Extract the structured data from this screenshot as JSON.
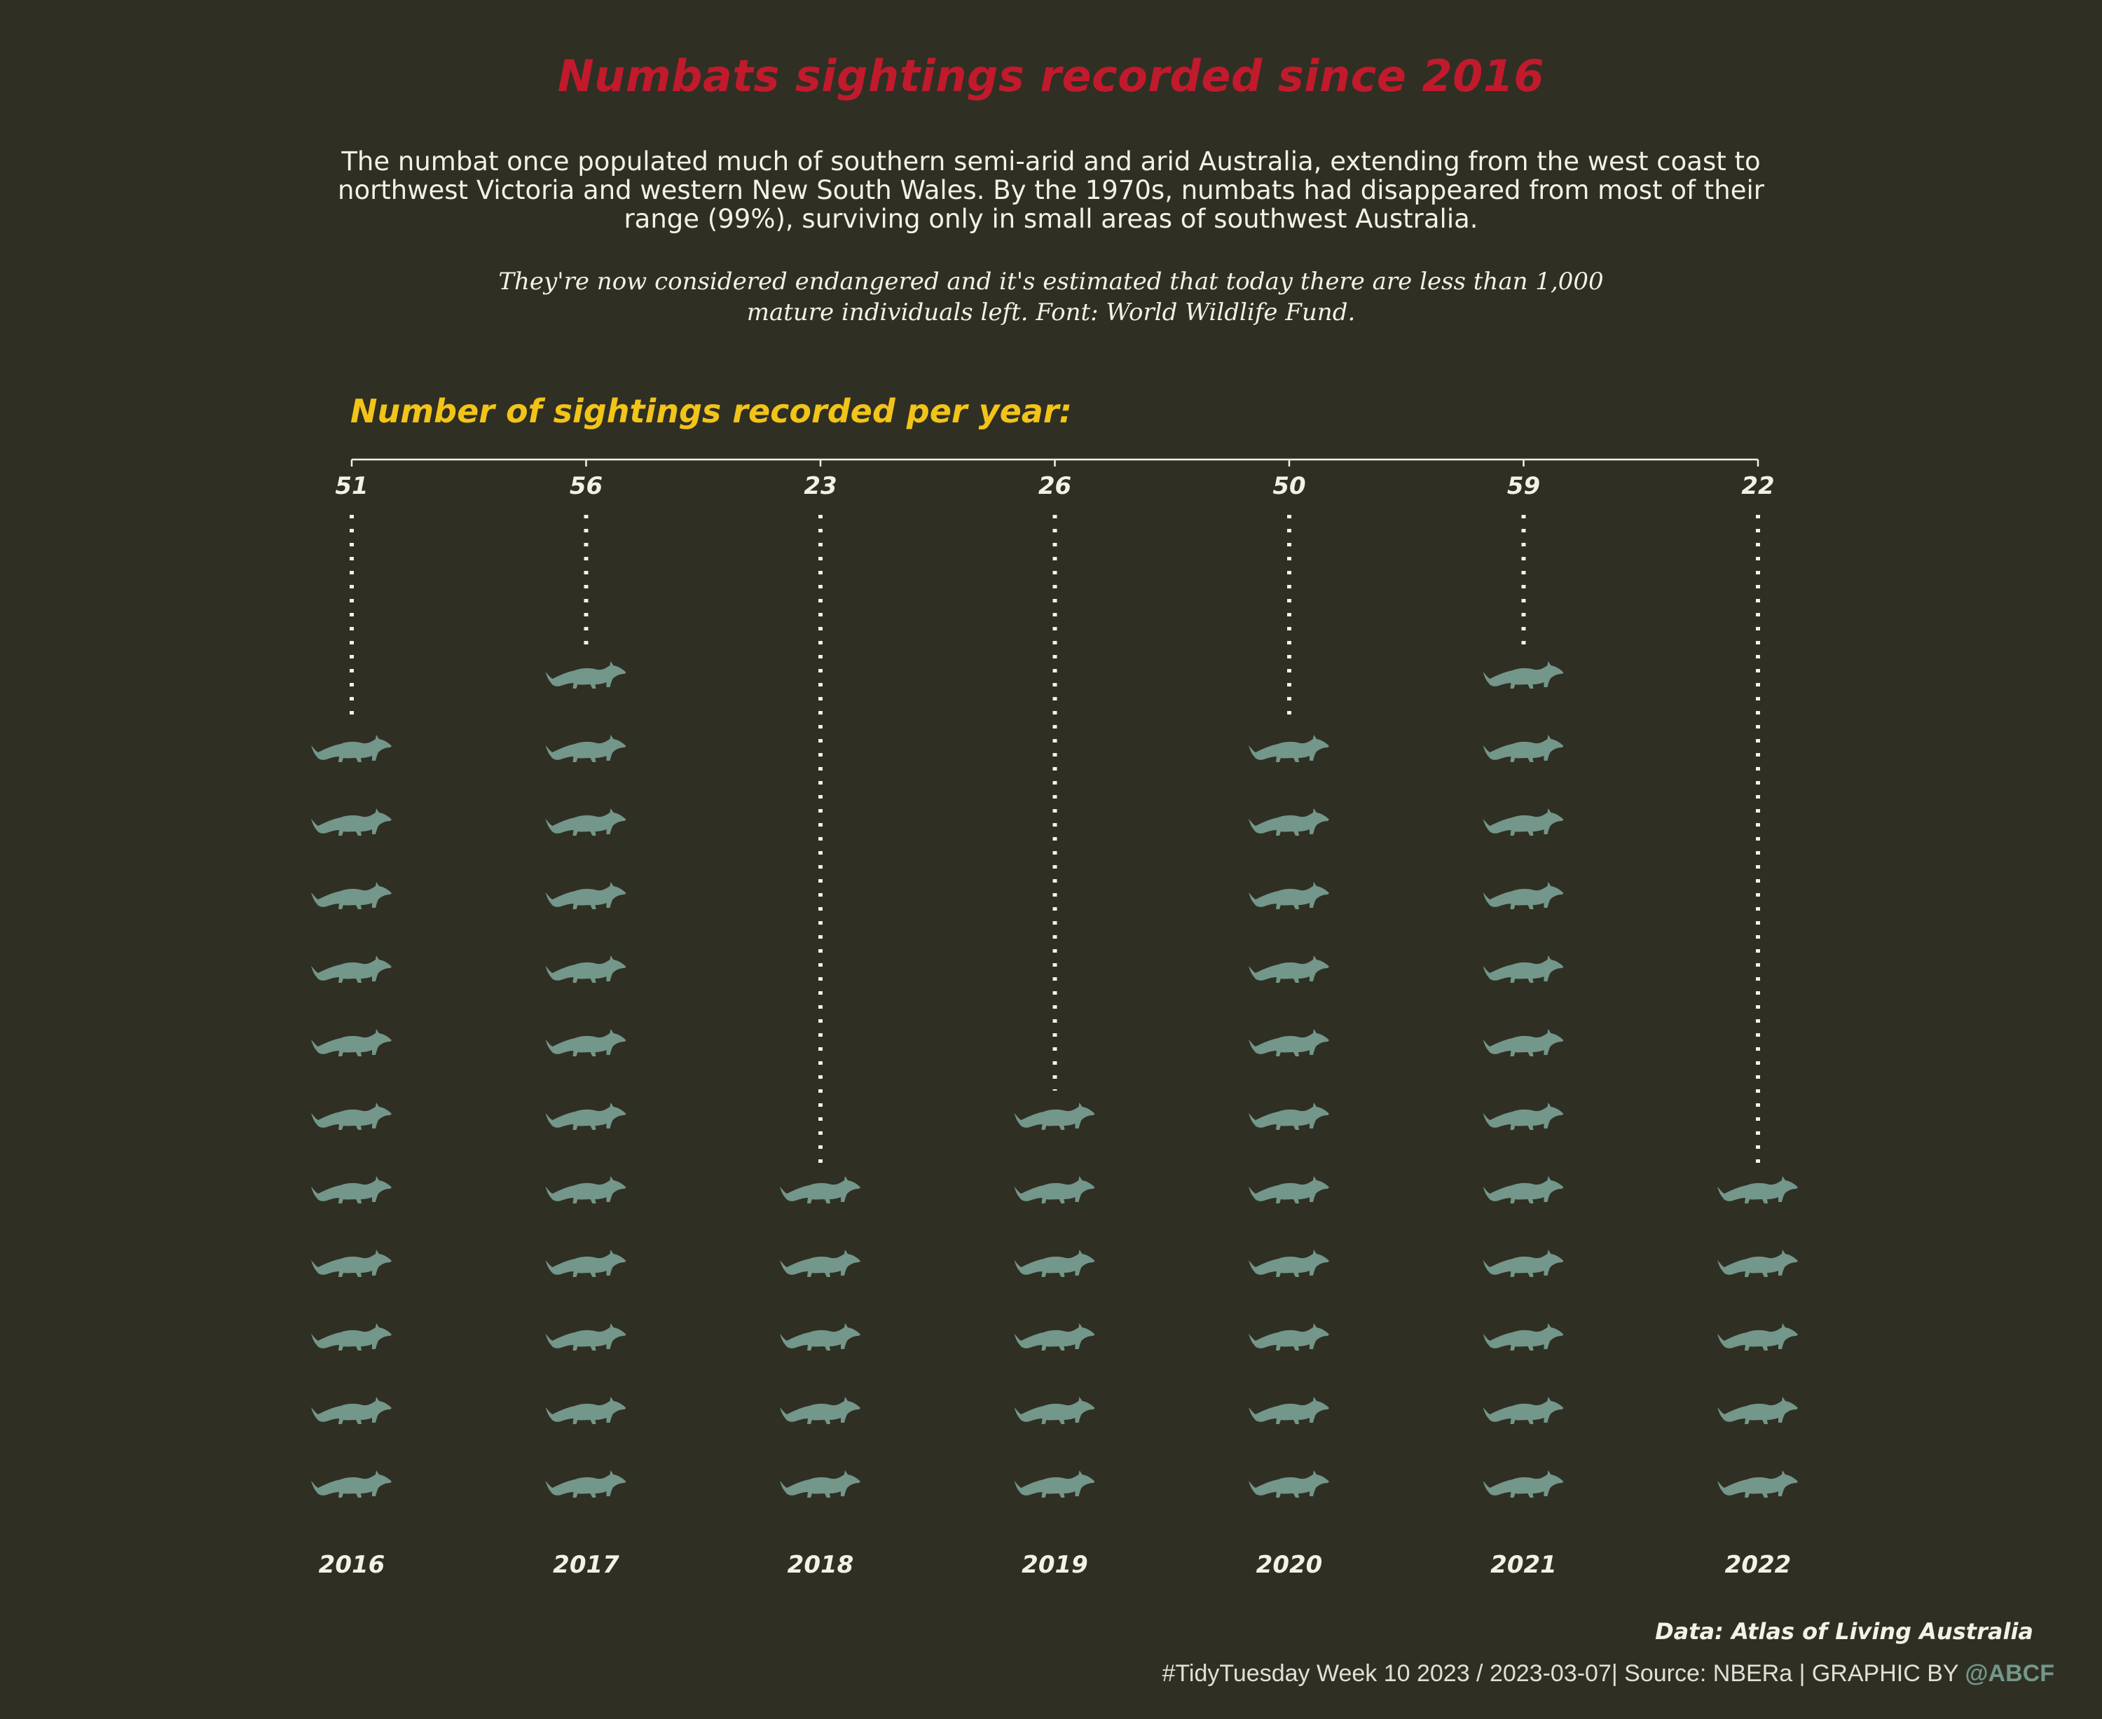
{
  "title": "Numbats sightings recorded since 2016",
  "description": "The numbat once populated much of southern semi-arid and arid Australia, extending from the west coast to northwest Victoria and western New South Wales. By the 1970s, numbats had disappeared from most of their range (99%), surviving only in small areas of southwest Australia.",
  "note": "They're now considered endangered and it's estimated that today there are less than 1,000 mature individuals left. Font: World Wildlife Fund.",
  "subtitle": "Number of sightings recorded per year:",
  "credit": "Data: Atlas of Living Australia",
  "caption": {
    "text": "#TidyTuesday Week 10 2023 / 2023-03-07| Source: NBERa | GRAPHIC BY ",
    "handle": "@ABCF"
  },
  "colors": {
    "background": "#302f24",
    "title": "#c11a2c",
    "subtitle": "#f2c418",
    "text": "#f4f1e6",
    "icon": "#73978a"
  },
  "chart_data": {
    "type": "pictogram",
    "icon": "numbat-icon",
    "categories": [
      "2016",
      "2017",
      "2018",
      "2019",
      "2020",
      "2021",
      "2022"
    ],
    "values": [
      51,
      56,
      23,
      26,
      50,
      59,
      22
    ],
    "icon_counts": [
      11,
      12,
      5,
      6,
      11,
      12,
      5
    ]
  }
}
